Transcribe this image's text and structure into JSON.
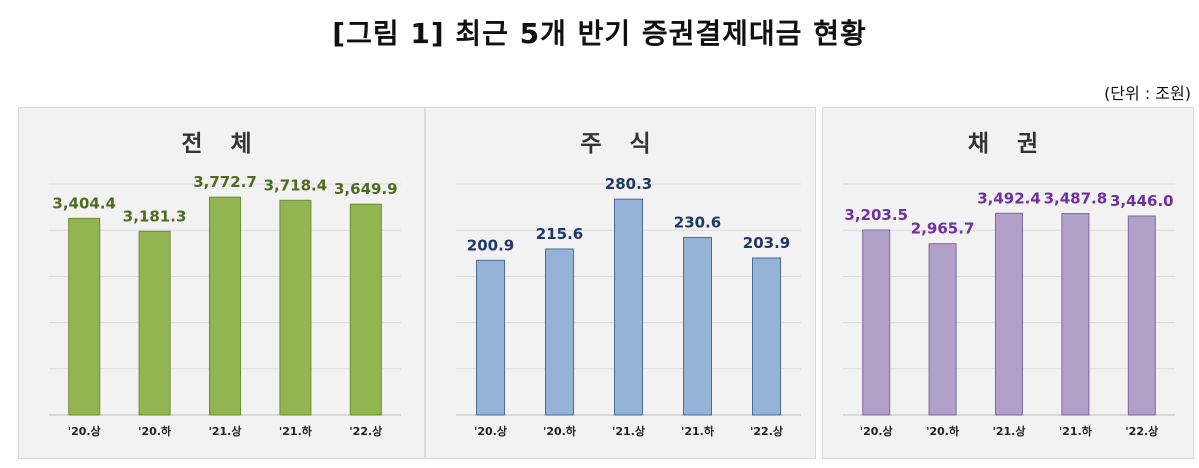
{
  "title": "[그림 1] 최근 5개 반기 증권결제대금 현황",
  "unit": "(단위 : 조원)",
  "chart_data": [
    {
      "type": "bar",
      "title": "전 체",
      "categories": [
        "'20.상",
        "'20.하",
        "'21.상",
        "'21.하",
        "'22.상"
      ],
      "values": [
        3404.4,
        3181.3,
        3772.7,
        3718.4,
        3649.9
      ],
      "value_labels": [
        "3,404.4",
        "3,181.3",
        "3,772.7",
        "3,718.4",
        "3,649.9"
      ],
      "ylim": [
        0,
        4000
      ],
      "grid": true,
      "bar_color": "#92b551",
      "bar_border": "#6e8c34",
      "label_color": "#4f6b22"
    },
    {
      "type": "bar",
      "title": "주 식",
      "categories": [
        "'20.상",
        "'20.하",
        "'21.상",
        "'21.하",
        "'22.상"
      ],
      "values": [
        200.9,
        215.6,
        280.3,
        230.6,
        203.9
      ],
      "value_labels": [
        "200.9",
        "215.6",
        "280.3",
        "230.6",
        "203.9"
      ],
      "ylim": [
        0,
        300
      ],
      "grid": true,
      "bar_color": "#95b3d7",
      "bar_border": "#4a6d9c",
      "label_color": "#1f3864"
    },
    {
      "type": "bar",
      "title": "채 권",
      "categories": [
        "'20.상",
        "'20.하",
        "'21.상",
        "'21.하",
        "'22.상"
      ],
      "values": [
        3203.5,
        2965.7,
        3492.4,
        3487.8,
        3446.0
      ],
      "value_labels": [
        "3,203.5",
        "2,965.7",
        "3,492.4",
        "3,487.8",
        "3,446.0"
      ],
      "ylim": [
        0,
        4000
      ],
      "grid": true,
      "bar_color": "#b1a0c7",
      "bar_border": "#7d68a0",
      "label_color": "#7030a0"
    }
  ]
}
